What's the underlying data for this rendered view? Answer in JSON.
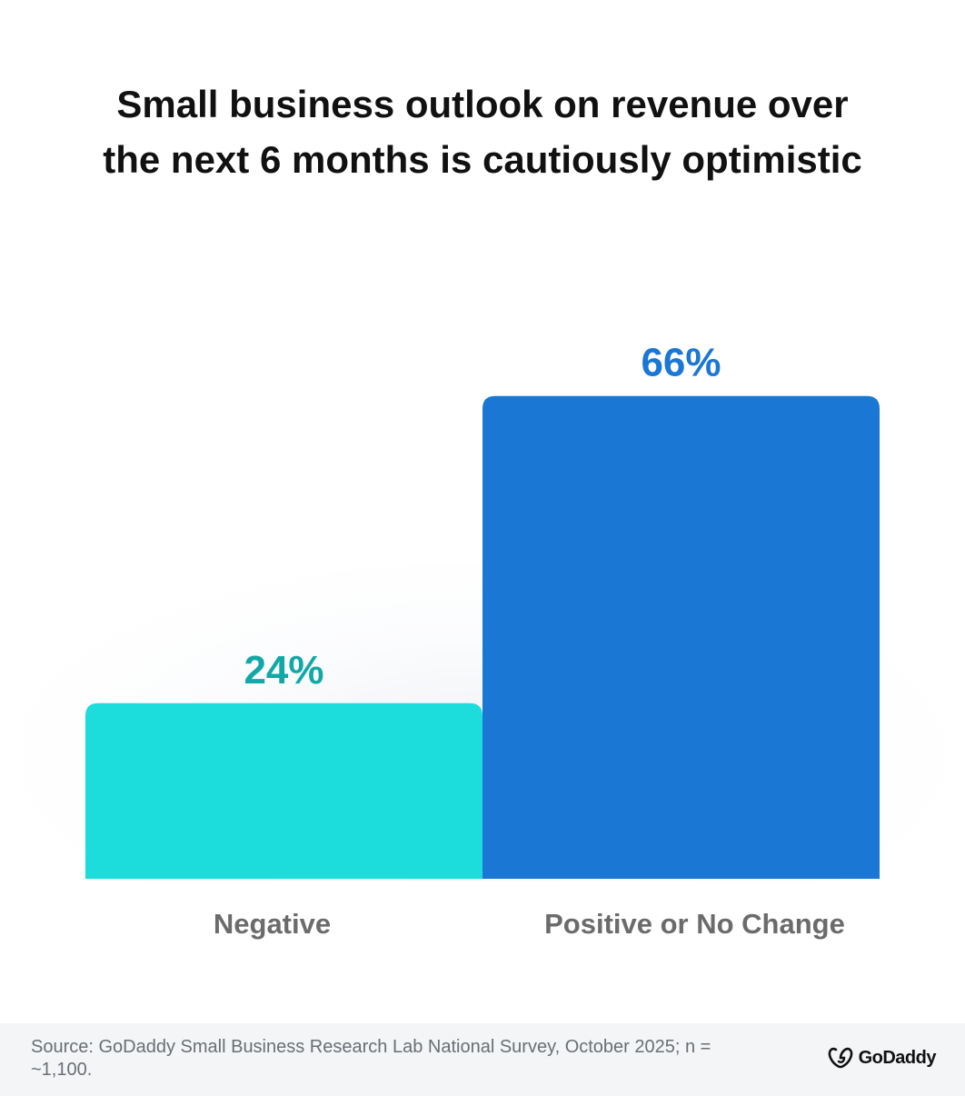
{
  "title_lines": [
    "Small business outlook on revenue over",
    "the next 6 months is cautiously optimistic"
  ],
  "chart_data": {
    "type": "bar",
    "title": "Small business outlook on revenue over the next 6 months is cautiously optimistic",
    "categories": [
      "Negative",
      "Positive or No Change"
    ],
    "values": [
      24,
      66
    ],
    "value_labels": [
      "24%",
      "66%"
    ],
    "unit": "%",
    "ylim": [
      0,
      100
    ],
    "colors": [
      "#1cdcdc",
      "#1b77d4"
    ],
    "label_colors": [
      "#13a8a8",
      "#1b77d4"
    ],
    "grid": false,
    "legend": "none"
  },
  "footer": {
    "source": "Source: GoDaddy Small Business Research Lab National Survey, October 2025; n = ~1,100.",
    "logo_text": "GoDaddy",
    "logo_icon": "godaddy-logo-icon"
  }
}
